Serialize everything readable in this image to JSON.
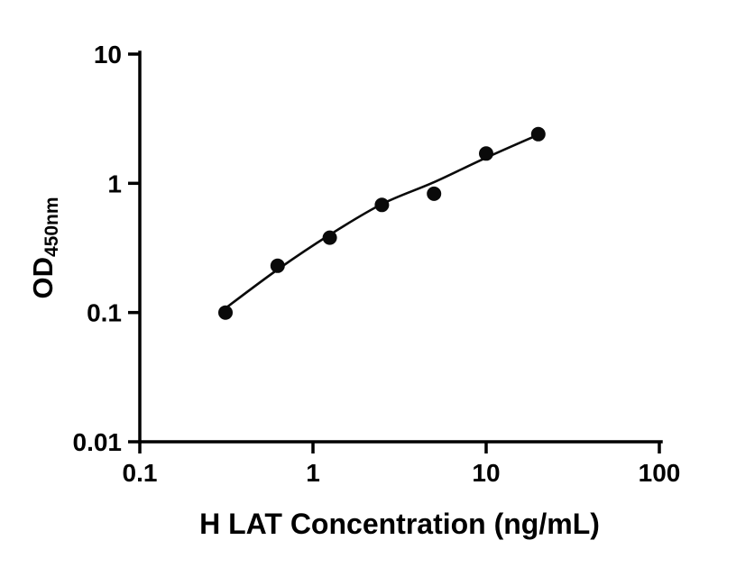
{
  "chart_data": {
    "type": "scatter",
    "title": "",
    "xlabel": "H LAT Concentration (ng/mL)",
    "ylabel_main": "OD",
    "ylabel_sub": "450nm",
    "x_scale": "log",
    "y_scale": "log",
    "xlim": [
      0.1,
      100
    ],
    "ylim": [
      0.01,
      10
    ],
    "grid": false,
    "legend": "none",
    "x_ticks": [
      {
        "value": 0.1,
        "label": "0.1"
      },
      {
        "value": 1,
        "label": "1"
      },
      {
        "value": 10,
        "label": "10"
      },
      {
        "value": 100,
        "label": "100"
      }
    ],
    "y_ticks": [
      {
        "value": 0.01,
        "label": "0.01"
      },
      {
        "value": 0.1,
        "label": "0.1"
      },
      {
        "value": 1,
        "label": "1"
      },
      {
        "value": 10,
        "label": "10"
      }
    ],
    "points": [
      {
        "x": 0.3125,
        "y": 0.1
      },
      {
        "x": 0.625,
        "y": 0.23
      },
      {
        "x": 1.25,
        "y": 0.38
      },
      {
        "x": 2.5,
        "y": 0.68
      },
      {
        "x": 5,
        "y": 0.83
      },
      {
        "x": 10,
        "y": 1.7
      },
      {
        "x": 20,
        "y": 2.4
      }
    ],
    "fit_curve": [
      [
        0.3125,
        0.108
      ],
      [
        0.625,
        0.215
      ],
      [
        1.25,
        0.4
      ],
      [
        2.5,
        0.69
      ],
      [
        5,
        1.02
      ],
      [
        10,
        1.58
      ],
      [
        20,
        2.38
      ]
    ],
    "marker_color": "#0a0a0a",
    "line_color": "#0a0a0a",
    "axis_color": "#000000",
    "background": "#ffffff"
  }
}
